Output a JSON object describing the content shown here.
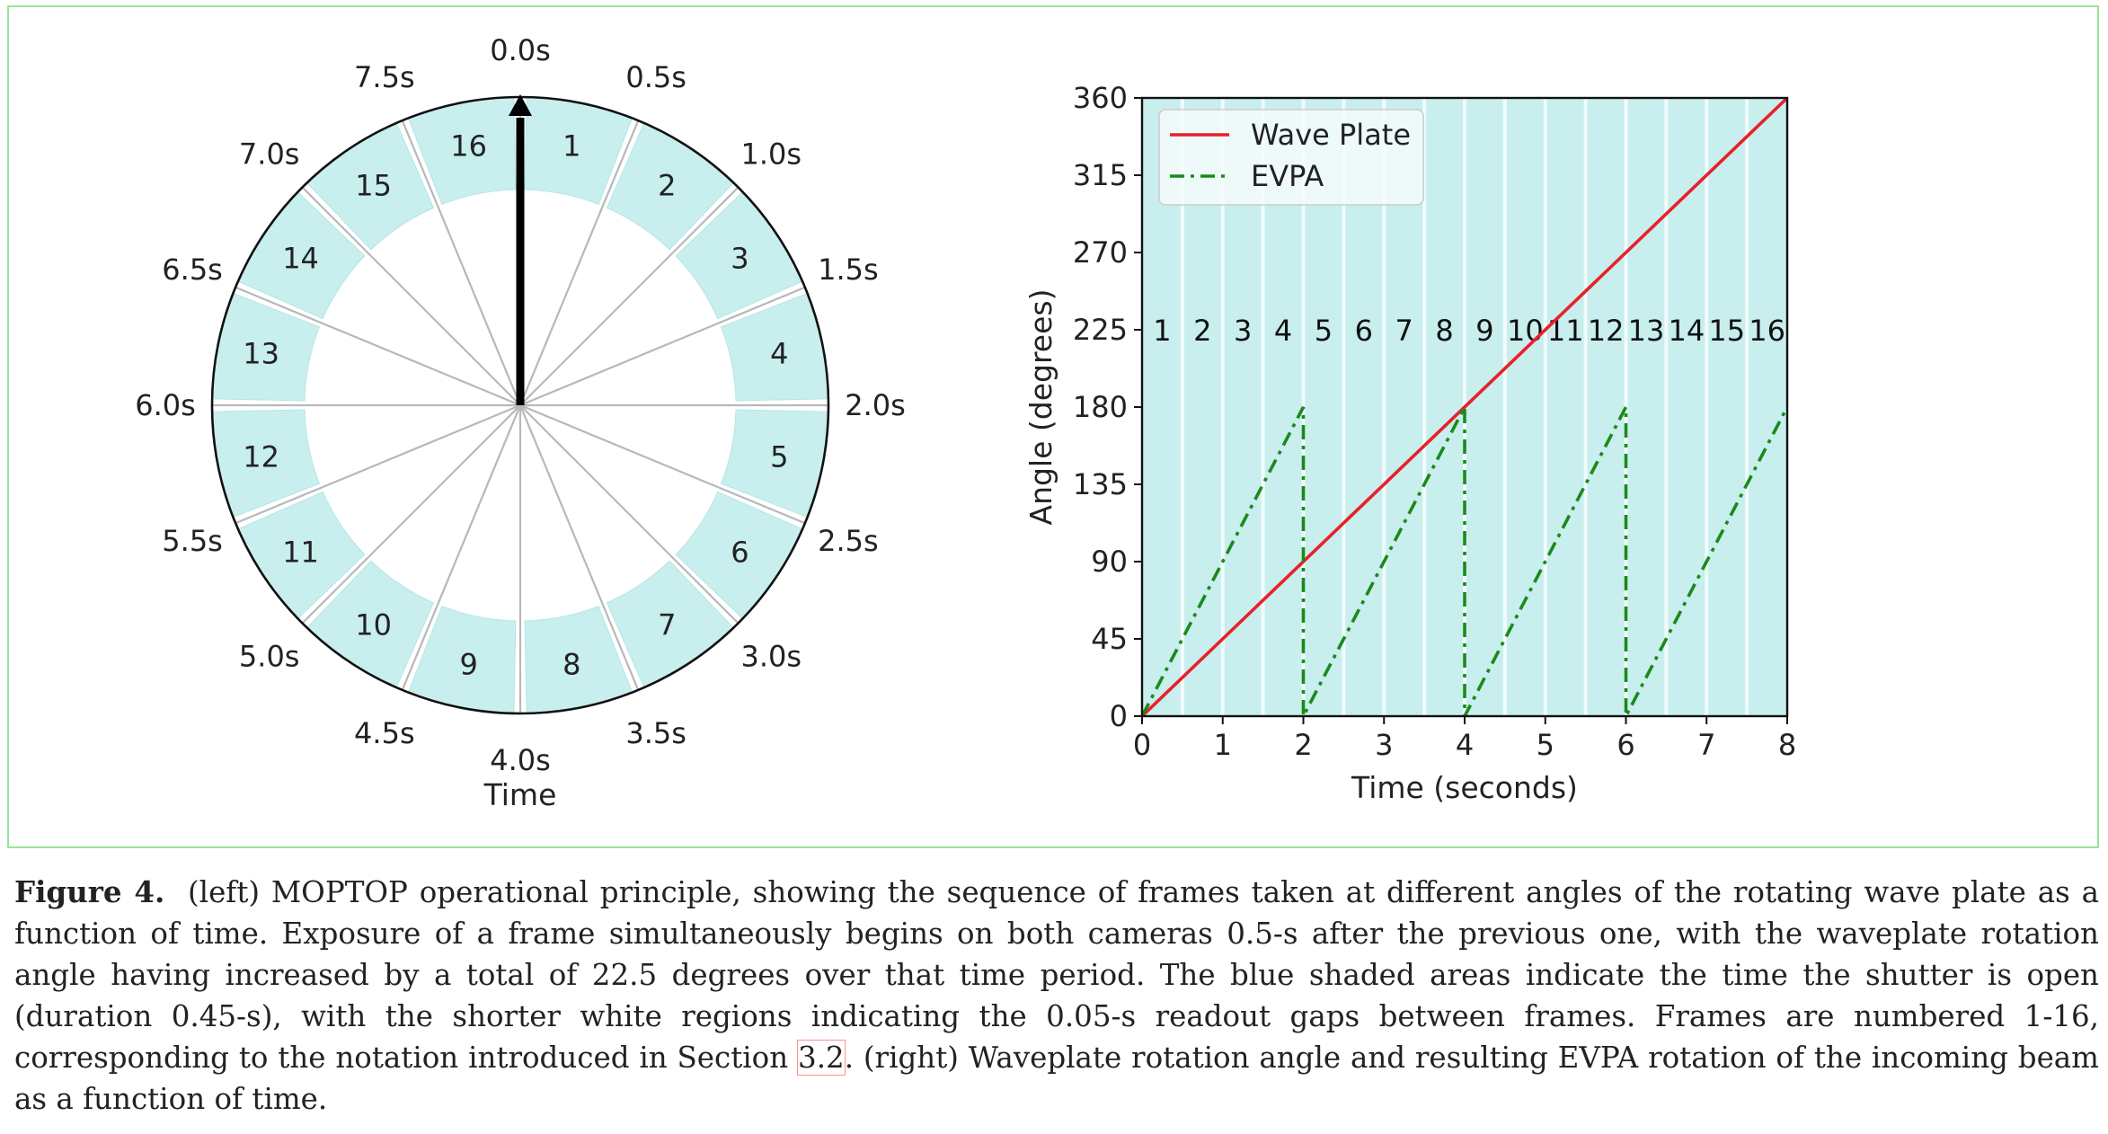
{
  "clock": {
    "time_labels": [
      "0.0s",
      "0.5s",
      "1.0s",
      "1.5s",
      "2.0s",
      "2.5s",
      "3.0s",
      "3.5s",
      "4.0s",
      "4.5s",
      "5.0s",
      "5.5s",
      "6.0s",
      "6.5s",
      "7.0s",
      "7.5s"
    ],
    "frame_labels": [
      "1",
      "2",
      "3",
      "4",
      "5",
      "6",
      "7",
      "8",
      "9",
      "10",
      "11",
      "12",
      "13",
      "14",
      "15",
      "16"
    ],
    "axis_label": "Time",
    "shade_color": "#c8eeee",
    "hand_color": "#000000"
  },
  "chart_data": {
    "type": "line",
    "xlabel": "Time (seconds)",
    "ylabel": "Angle (degrees)",
    "xlim": [
      0,
      8
    ],
    "ylim": [
      0,
      360
    ],
    "xticks": [
      0,
      1,
      2,
      3,
      4,
      5,
      6,
      7,
      8
    ],
    "yticks": [
      0,
      45,
      90,
      135,
      180,
      225,
      270,
      315,
      360
    ],
    "frame_labels": [
      "1",
      "2",
      "3",
      "4",
      "5",
      "6",
      "7",
      "8",
      "9",
      "10",
      "11",
      "12",
      "13",
      "14",
      "15",
      "16"
    ],
    "legend_position": "top-left",
    "series": [
      {
        "name": "Wave Plate",
        "color": "#e8202a",
        "style": "solid",
        "x": [
          0,
          8
        ],
        "y": [
          0,
          360
        ]
      },
      {
        "name": "EVPA",
        "color": "#1a8a1a",
        "style": "dashdot",
        "x": [
          0,
          2,
          2,
          4,
          4,
          6,
          6,
          8
        ],
        "y": [
          0,
          180,
          0,
          180,
          0,
          180,
          0,
          180
        ]
      }
    ]
  },
  "caption": {
    "label": "Figure 4.",
    "text_before_ref": "(left) MOPTOP operational principle, showing the sequence of frames taken at different angles of the rotating wave plate as a function of time. Exposure of a frame simultaneously begins on both cameras 0.5-s after the previous one, with the waveplate rotation angle having increased by a total of 22.5 degrees over that time period. The blue shaded areas indicate the time the shutter is open (duration 0.45-s), with the shorter white regions indicating the 0.05-s readout gaps between frames. Frames are numbered 1-16, corresponding to the notation introduced in Section ",
    "ref": "3.2",
    "text_after_ref": ". (right) Waveplate rotation angle and resulting EVPA rotation of the incoming beam as a function of time."
  }
}
